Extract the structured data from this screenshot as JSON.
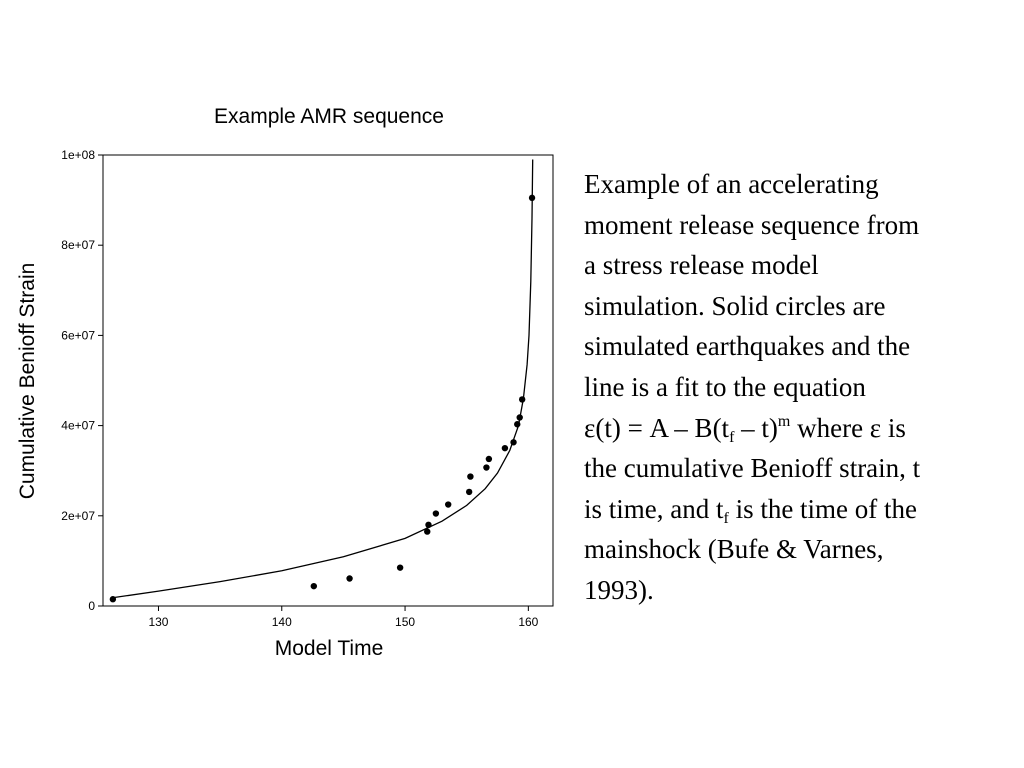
{
  "chart_data": {
    "type": "scatter",
    "title": "Example AMR sequence",
    "xlabel": "Model Time",
    "ylabel": "Cumulative Benioff Strain",
    "xlim": [
      125.5,
      162
    ],
    "ylim": [
      0,
      100000000
    ],
    "xticks": [
      130,
      140,
      150,
      160
    ],
    "xtick_labels": [
      "130",
      "140",
      "150",
      "160"
    ],
    "yticks": [
      0,
      20000000,
      40000000,
      60000000,
      80000000,
      100000000
    ],
    "ytick_labels": [
      "0",
      "2e+07",
      "4e+07",
      "6e+07",
      "8e+07",
      "1e+08"
    ],
    "grid": false,
    "series": [
      {
        "kind": "points",
        "x": [
          126.3,
          142.6,
          145.5,
          149.6,
          151.8,
          151.9,
          152.5,
          153.5,
          155.2,
          155.3,
          156.6,
          156.8,
          158.1,
          158.8,
          159.1,
          159.3,
          159.5,
          160.3
        ],
        "y": [
          1500000,
          4400000,
          6100000,
          8500000,
          16500000,
          18000000,
          20500000,
          22500000,
          25300000,
          28700000,
          30700000,
          32600000,
          35000000,
          36300000,
          40300000,
          41800000,
          45800000,
          90500000
        ]
      },
      {
        "kind": "fit-line",
        "x": [
          126.2,
          130,
          135,
          140,
          145,
          150,
          153,
          155,
          156.5,
          157.5,
          158.5,
          159.2,
          159.6,
          159.9,
          160.05,
          160.2,
          160.3,
          160.35
        ],
        "y": [
          1800000,
          3300000,
          5400000,
          7800000,
          10900000,
          15000000,
          18800000,
          22300000,
          26000000,
          29500000,
          34500000,
          40000000,
          46000000,
          53500000,
          60000000,
          72000000,
          86000000,
          99000000
        ]
      }
    ]
  },
  "caption": {
    "line1": "Example of an accelerating",
    "line2": "moment release sequence from",
    "line3": "a stress release model",
    "line4": "simulation.  Solid circles are",
    "line5": "simulated earthquakes and the",
    "line6": "line is a fit to the equation",
    "eq_lhs": "ε(t) = A – B(t",
    "eq_sub": "f",
    "eq_mid": " – t)",
    "eq_sup": "m",
    "eq_rhs": " where ε is",
    "line8": "the cumulative Benioff strain, t",
    "line9_a": "is time, and t",
    "line9_sub": "f",
    "line9_b": " is the time of the",
    "line10": "mainshock (Bufe & Varnes,",
    "line11": "1993)."
  }
}
